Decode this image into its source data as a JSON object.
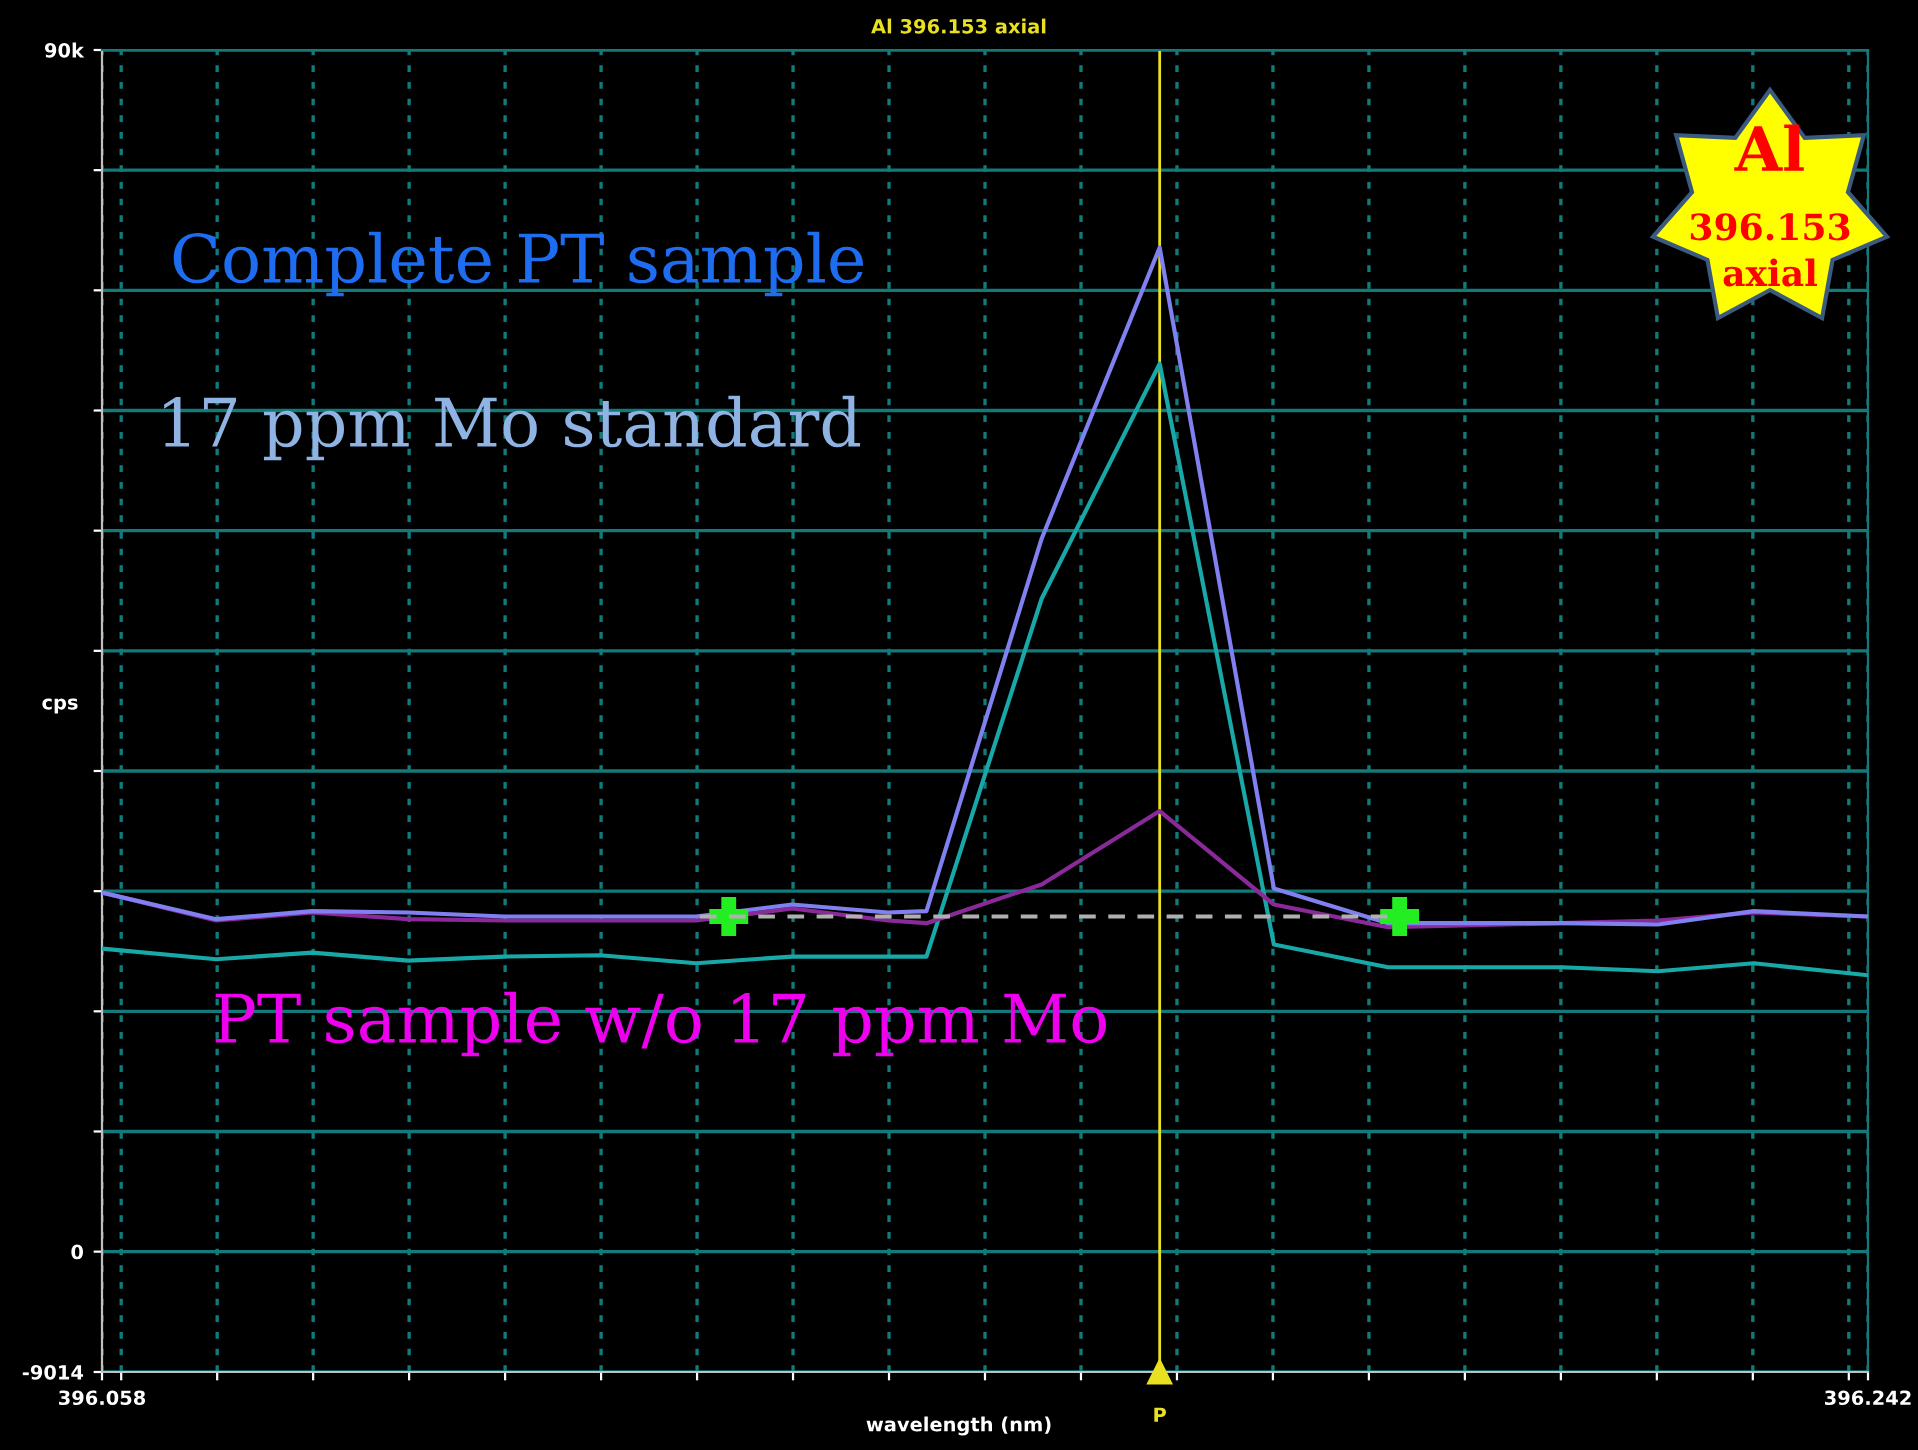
{
  "chart_data": {
    "type": "line",
    "title": "Al 396.153 axial",
    "xlabel": "wavelength (nm)",
    "ylabel": "cps",
    "xlim": [
      396.058,
      396.242
    ],
    "ylim": [
      -9014,
      90000
    ],
    "xticks": [
      {
        "value": 396.058,
        "label": "396.058"
      },
      {
        "value": 396.06,
        "label": null
      },
      {
        "value": 396.07,
        "label": null
      },
      {
        "value": 396.08,
        "label": null
      },
      {
        "value": 396.09,
        "label": null
      },
      {
        "value": 396.1,
        "label": null
      },
      {
        "value": 396.11,
        "label": null
      },
      {
        "value": 396.12,
        "label": null
      },
      {
        "value": 396.13,
        "label": null
      },
      {
        "value": 396.14,
        "label": null
      },
      {
        "value": 396.15,
        "label": null
      },
      {
        "value": 396.16,
        "label": null
      },
      {
        "value": 396.17,
        "label": null
      },
      {
        "value": 396.18,
        "label": null
      },
      {
        "value": 396.19,
        "label": null
      },
      {
        "value": 396.2,
        "label": null
      },
      {
        "value": 396.21,
        "label": null
      },
      {
        "value": 396.22,
        "label": null
      },
      {
        "value": 396.23,
        "label": null
      },
      {
        "value": 396.24,
        "label": null
      },
      {
        "value": 396.242,
        "label": "396.242"
      }
    ],
    "yticks": [
      {
        "value": -9014,
        "label": "-9014"
      },
      0,
      {
        "value": 9000,
        "label": null
      },
      {
        "value": 18000,
        "label": null
      },
      {
        "value": 27000,
        "label": null
      },
      {
        "value": 36000,
        "label": null
      },
      {
        "value": 45000,
        "label": null
      },
      {
        "value": 54000,
        "label": null
      },
      {
        "value": 63000,
        "label": null
      },
      {
        "value": 72000,
        "label": null
      },
      {
        "value": 81000,
        "label": null
      },
      {
        "value": 90000,
        "label": "90k"
      }
    ],
    "grid": true,
    "series": [
      {
        "color": "#19a8a8",
        "x": [
          396.058,
          396.0699,
          396.0799,
          396.0899,
          396.0999,
          396.1099,
          396.1199,
          396.1299,
          396.1399,
          396.1439,
          396.1559,
          396.1682,
          396.1801,
          396.192,
          396.2101,
          396.2201,
          396.2301,
          396.242
        ],
        "values": [
          22700,
          21900,
          22400,
          21800,
          22100,
          22200,
          21600,
          22100,
          22100,
          22100,
          48900,
          66500,
          23000,
          21300,
          21300,
          21000,
          21600,
          20700
        ]
      },
      {
        "color": "#8a2a9a",
        "x": [
          396.058,
          396.0699,
          396.0799,
          396.0899,
          396.0999,
          396.1099,
          396.1199,
          396.1299,
          396.1399,
          396.1439,
          396.1559,
          396.1682,
          396.1801,
          396.192,
          396.2101,
          396.2201,
          396.2301,
          396.242
        ],
        "values": [
          26900,
          24800,
          25400,
          24900,
          24800,
          24800,
          24800,
          25700,
          24800,
          24600,
          27500,
          33000,
          26000,
          24300,
          24600,
          24800,
          25400,
          25100
        ]
      },
      {
        "color": "#8080f0",
        "x": [
          396.058,
          396.0699,
          396.0799,
          396.0899,
          396.0999,
          396.1099,
          396.1199,
          396.1299,
          396.1399,
          396.1439,
          396.1559,
          396.1682,
          396.1801,
          396.192,
          396.2101,
          396.2201,
          396.2301,
          396.242
        ],
        "values": [
          26900,
          24900,
          25500,
          25400,
          25100,
          25100,
          25100,
          26000,
          25400,
          25500,
          53400,
          75200,
          27200,
          24600,
          24600,
          24500,
          25500,
          25100
        ]
      },
      {
        "color": "#b0b0b0",
        "line_style": "dashed",
        "x": [
          396.1203,
          396.192
        ],
        "values": [
          25100,
          25100
        ]
      },
      {
        "type": "scatter",
        "marker": "cross",
        "color": "#22ee22",
        "x": [
          396.1233,
          396.1932
        ],
        "values": [
          25100,
          25100
        ]
      }
    ],
    "ref_lines": [
      {
        "axis": "x",
        "value": 396.1682,
        "label": "P",
        "color": "#e8e020"
      }
    ],
    "annotations": [
      "Complete PT sample",
      "17 ppm Mo standard",
      "PT sample w/o 17 ppm Mo",
      "Al",
      "396.153",
      "axial"
    ]
  }
}
